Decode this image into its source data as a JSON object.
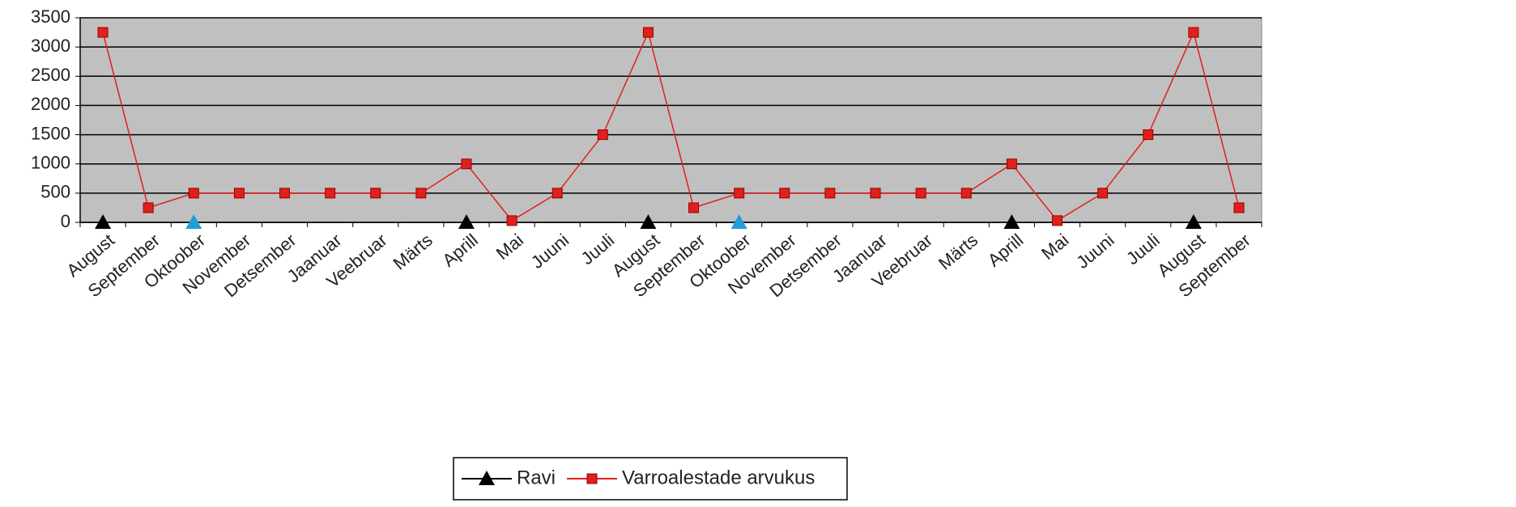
{
  "chart_data": {
    "type": "line",
    "categories": [
      "August",
      "September",
      "Oktoober",
      "November",
      "Detsember",
      "Jaanuar",
      "Veebruar",
      "Märts",
      "Aprill",
      "Mai",
      "Juuni",
      "Juuli",
      "August",
      "September",
      "Oktoober",
      "November",
      "Detsember",
      "Jaanuar",
      "Veebruar",
      "Märts",
      "Aprill",
      "Mai",
      "Juuni",
      "Juuli",
      "August",
      "September"
    ],
    "series": [
      {
        "name": "Ravi",
        "color": "#000000",
        "marker": "triangle",
        "values": [
          0,
          null,
          0,
          null,
          null,
          null,
          null,
          null,
          0,
          null,
          null,
          null,
          0,
          null,
          0,
          null,
          null,
          null,
          null,
          null,
          0,
          null,
          null,
          null,
          0,
          null
        ],
        "point_colors": [
          "#000000",
          null,
          "#1e9fd8",
          null,
          null,
          null,
          null,
          null,
          "#000000",
          null,
          null,
          null,
          "#000000",
          null,
          "#1e9fd8",
          null,
          null,
          null,
          null,
          null,
          "#000000",
          null,
          null,
          null,
          "#000000",
          null
        ]
      },
      {
        "name": "Varroalestade arvukus",
        "color": "#e0201c",
        "marker": "square",
        "values": [
          3250,
          250,
          500,
          500,
          500,
          500,
          500,
          500,
          1000,
          30,
          500,
          1500,
          3250,
          250,
          500,
          500,
          500,
          500,
          500,
          500,
          1000,
          30,
          500,
          1500,
          3250,
          250
        ]
      }
    ],
    "ylim": [
      0,
      3500
    ],
    "yticks": [
      0,
      500,
      1000,
      1500,
      2000,
      2500,
      3000,
      3500
    ],
    "grid": true,
    "plot_background": "#c0c0c0",
    "legend": "bottom"
  }
}
